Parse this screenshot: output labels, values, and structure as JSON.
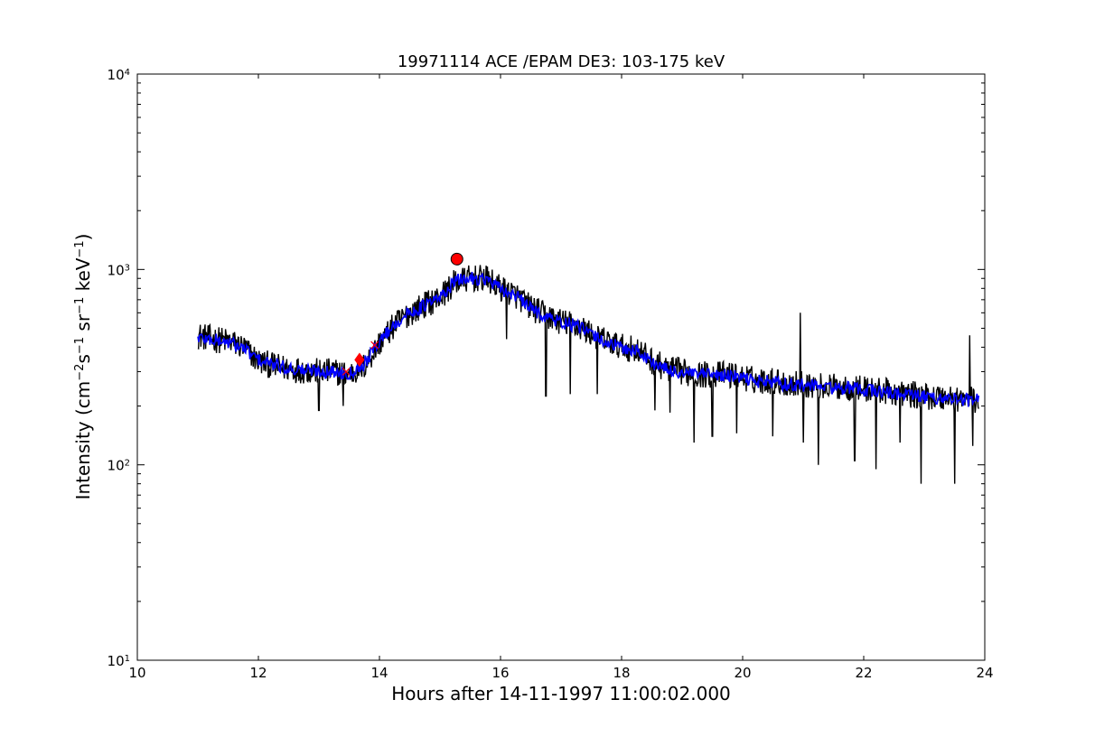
{
  "chart_data": {
    "type": "line",
    "title": "19971114 ACE /EPAM DE3: 103-175 keV",
    "xlabel": "Hours after 14-11-1997 11:00:02.000",
    "ylabel": {
      "prefix": "Intensity (cm",
      "exp1": "−2",
      "s": "s",
      "exp2": "−1",
      "sr": " sr",
      "exp3": "−1",
      "kev": " keV",
      "exp4": "−1",
      "suffix": ")"
    },
    "xlim": [
      10,
      24
    ],
    "ylim": [
      10,
      10000
    ],
    "yscale": "log",
    "grid": false,
    "x_ticks": [
      10,
      12,
      14,
      16,
      18,
      20,
      22,
      24
    ],
    "x_tick_labels": [
      "10",
      "12",
      "14",
      "16",
      "18",
      "20",
      "22",
      "24"
    ],
    "y_ticks": [
      10,
      100,
      1000,
      10000
    ],
    "y_tick_labels": [
      {
        "base": "10",
        "exp": "1"
      },
      {
        "base": "10",
        "exp": "2"
      },
      {
        "base": "10",
        "exp": "3"
      },
      {
        "base": "10",
        "exp": "4"
      }
    ],
    "series": [
      {
        "color": "#000000",
        "role": "raw",
        "points": [
          [
            11.0,
            460
          ],
          [
            11.25,
            440
          ],
          [
            11.5,
            430
          ],
          [
            11.75,
            400
          ],
          [
            12.0,
            340
          ],
          [
            12.25,
            320
          ],
          [
            12.5,
            310
          ],
          [
            12.75,
            305
          ],
          [
            13.0,
            300
          ],
          [
            13.25,
            300
          ],
          [
            13.5,
            290
          ],
          [
            13.75,
            320
          ],
          [
            14.0,
            420
          ],
          [
            14.25,
            520
          ],
          [
            14.5,
            600
          ],
          [
            14.75,
            660
          ],
          [
            15.0,
            720
          ],
          [
            15.25,
            860
          ],
          [
            15.5,
            900
          ],
          [
            15.75,
            900
          ],
          [
            16.0,
            800
          ],
          [
            16.25,
            740
          ],
          [
            16.5,
            640
          ],
          [
            16.75,
            580
          ],
          [
            17.0,
            540
          ],
          [
            17.25,
            520
          ],
          [
            17.5,
            470
          ],
          [
            17.75,
            430
          ],
          [
            18.0,
            400
          ],
          [
            18.25,
            390
          ],
          [
            18.5,
            340
          ],
          [
            18.75,
            310
          ],
          [
            19.0,
            300
          ],
          [
            19.25,
            290
          ],
          [
            19.5,
            290
          ],
          [
            19.75,
            290
          ],
          [
            20.0,
            280
          ],
          [
            20.25,
            270
          ],
          [
            20.5,
            270
          ],
          [
            20.75,
            260
          ],
          [
            21.0,
            260
          ],
          [
            21.25,
            255
          ],
          [
            21.5,
            250
          ],
          [
            21.75,
            250
          ],
          [
            22.0,
            245
          ],
          [
            22.25,
            240
          ],
          [
            22.5,
            235
          ],
          [
            22.75,
            230
          ],
          [
            23.0,
            225
          ],
          [
            23.25,
            222
          ],
          [
            23.5,
            220
          ],
          [
            23.75,
            215
          ],
          [
            23.9,
            215
          ]
        ],
        "dips": [
          [
            13.0,
            190
          ],
          [
            13.4,
            200
          ],
          [
            16.1,
            440
          ],
          [
            16.75,
            225
          ],
          [
            17.15,
            230
          ],
          [
            17.6,
            230
          ],
          [
            18.55,
            190
          ],
          [
            18.8,
            185
          ],
          [
            19.2,
            130
          ],
          [
            19.5,
            140
          ],
          [
            19.9,
            145
          ],
          [
            20.5,
            140
          ],
          [
            20.95,
            600
          ],
          [
            21.0,
            130
          ],
          [
            21.25,
            100
          ],
          [
            21.85,
            105
          ],
          [
            22.2,
            95
          ],
          [
            22.6,
            130
          ],
          [
            22.95,
            80
          ],
          [
            23.5,
            80
          ],
          [
            23.75,
            460
          ],
          [
            23.8,
            125
          ]
        ]
      },
      {
        "color": "#0000ff",
        "role": "smoothed",
        "points": [
          [
            11.0,
            450
          ],
          [
            11.25,
            435
          ],
          [
            11.5,
            425
          ],
          [
            11.75,
            395
          ],
          [
            12.0,
            345
          ],
          [
            12.25,
            325
          ],
          [
            12.5,
            312
          ],
          [
            12.75,
            305
          ],
          [
            13.0,
            302
          ],
          [
            13.25,
            298
          ],
          [
            13.5,
            295
          ],
          [
            13.75,
            330
          ],
          [
            14.0,
            430
          ],
          [
            14.25,
            525
          ],
          [
            14.5,
            600
          ],
          [
            14.75,
            655
          ],
          [
            15.0,
            715
          ],
          [
            15.25,
            870
          ],
          [
            15.5,
            905
          ],
          [
            15.75,
            895
          ],
          [
            16.0,
            790
          ],
          [
            16.25,
            735
          ],
          [
            16.5,
            630
          ],
          [
            16.75,
            575
          ],
          [
            17.0,
            535
          ],
          [
            17.25,
            515
          ],
          [
            17.5,
            465
          ],
          [
            17.75,
            425
          ],
          [
            18.0,
            395
          ],
          [
            18.25,
            385
          ],
          [
            18.5,
            335
          ],
          [
            18.75,
            305
          ],
          [
            19.0,
            295
          ],
          [
            19.25,
            290
          ],
          [
            19.5,
            288
          ],
          [
            19.75,
            285
          ],
          [
            20.0,
            278
          ],
          [
            20.25,
            268
          ],
          [
            20.5,
            265
          ],
          [
            20.75,
            258
          ],
          [
            21.0,
            256
          ],
          [
            21.25,
            252
          ],
          [
            21.5,
            248
          ],
          [
            21.75,
            246
          ],
          [
            22.0,
            242
          ],
          [
            22.25,
            238
          ],
          [
            22.5,
            232
          ],
          [
            22.75,
            228
          ],
          [
            23.0,
            222
          ],
          [
            23.25,
            220
          ],
          [
            23.5,
            218
          ],
          [
            23.75,
            214
          ],
          [
            23.9,
            214
          ]
        ]
      }
    ],
    "markers": [
      {
        "shape": "circle",
        "x": 15.28,
        "y": 1130,
        "color": "#ff0000"
      },
      {
        "shape": "diamond",
        "x": 13.67,
        "y": 345,
        "color": "#ff0000"
      },
      {
        "shape": "cross",
        "x": 13.92,
        "y": 410,
        "color": "#ff0000"
      },
      {
        "shape": "cross",
        "x": 13.45,
        "y": 300,
        "color": "#ff0000"
      }
    ]
  }
}
